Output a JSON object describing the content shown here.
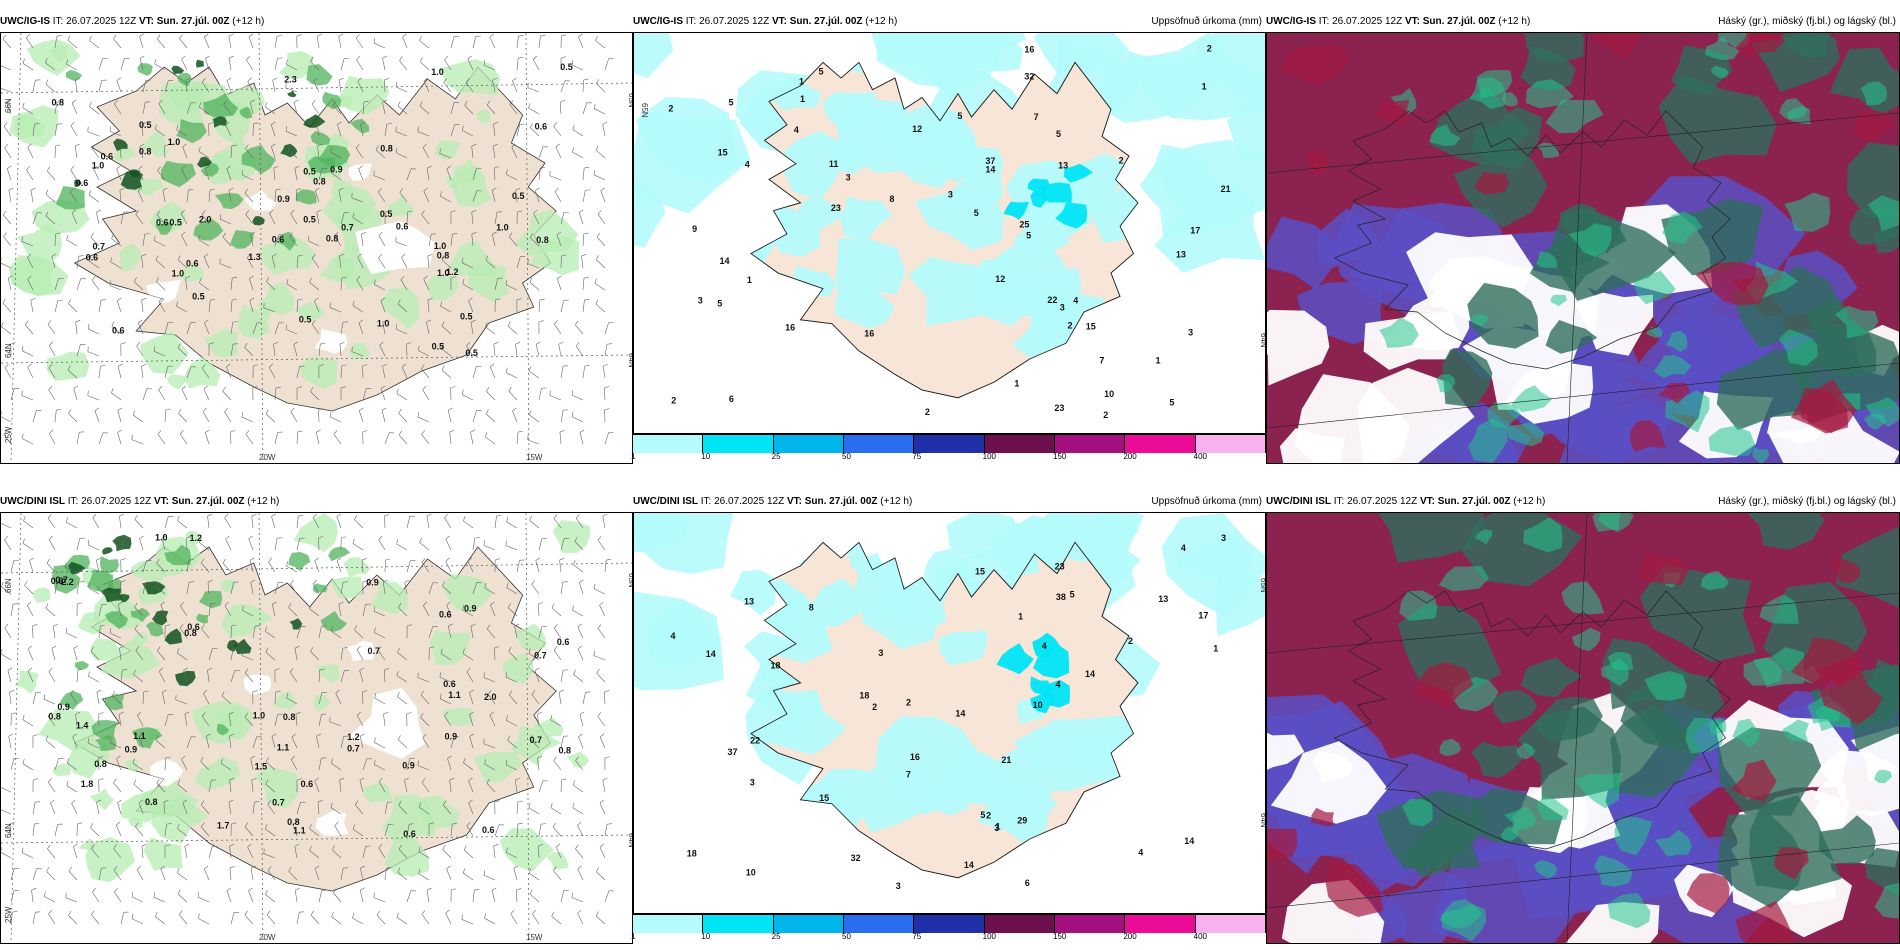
{
  "colorbar": {
    "labels": [
      "1",
      "10",
      "25",
      "50",
      "75",
      "100",
      "150",
      "200",
      "400"
    ],
    "colors": [
      "#b4fbfb",
      "#00e5f5",
      "#00b4ec",
      "#2a6ef0",
      "#1e2fa8",
      "#6e0f4e",
      "#a4107f",
      "#ea0c97",
      "#f6b1ee"
    ]
  },
  "rows": [
    {
      "model": "UWC/IG-IS",
      "wind_panel": {
        "it": " IT: 26.07.2025 12Z ",
        "vt": "VT: Sun. 27.júl. 00Z",
        "lead": " (+12 h)",
        "lat_labels": [
          "66N",
          "64N",
          "25W"
        ],
        "lon_labels": [
          "20W",
          "15W"
        ],
        "right_labels": [
          "65N",
          "64N"
        ],
        "values": [
          "1.3",
          "2.0",
          "0.6",
          "0.8",
          "0.5",
          "1.0",
          "0.6",
          "0.8",
          "0.5",
          "1.0",
          "1.0",
          "0.8",
          "0.6",
          "0.7",
          "1.0",
          "0.5",
          "0.6",
          "0.6",
          "0.5",
          "0.6",
          "1.2",
          "0.6",
          "0.5",
          "1.0",
          "0.5",
          "0.8",
          "0.9",
          "1.0",
          "0.8",
          "0.6",
          "0.5",
          "0.9",
          "0.8",
          "2.3",
          "0.6",
          "1.0",
          "0.5",
          "0.5",
          "0.8",
          "1.0",
          "0.5",
          "0.7",
          "0.5",
          "0.5"
        ]
      },
      "precip_panel": {
        "it": " IT: 26.07.2025 12Z ",
        "vt": "VT: Sun. 27.júl. 00Z",
        "lead": " (+12 h)",
        "title": "Uppsöfnuð úrkoma (mm)",
        "left_labels": [
          "65N"
        ],
        "right_labels": [
          "64N"
        ],
        "values": [
          "1",
          "3",
          "2",
          "2",
          "1",
          "5",
          "3",
          "4",
          "5",
          "5",
          "6",
          "2",
          "5",
          "4",
          "7",
          "5",
          "12",
          "9",
          "15",
          "25",
          "21",
          "23",
          "23",
          "22",
          "32",
          "37",
          "13",
          "12",
          "16",
          "15",
          "14",
          "17",
          "16",
          "14",
          "16",
          "10",
          "11",
          "13",
          "3",
          "7",
          "2",
          "1",
          "5",
          "2",
          "3",
          "4",
          "3",
          "5",
          "8",
          "2",
          "1",
          "2",
          "1",
          "5",
          "1"
        ]
      },
      "cloud_panel": {
        "it": " IT: 26.07.2025 12Z ",
        "vt": "VT: Sun. 27.júl. 00Z",
        "lead": " (+12 h)",
        "title": "Háský (gr.), miðský (fj.bl.) og lágský (bl.)"
      }
    },
    {
      "model": "UWC/DINI ISL",
      "wind_panel": {
        "it": " IT: 26.07.2025 12Z ",
        "vt": "VT: Sun. 27.júl. 00Z",
        "lead": " (+12 h)",
        "lat_labels": [
          "66N",
          "64N",
          "25W"
        ],
        "lon_labels": [
          "20W",
          "15W"
        ],
        "right_labels": [
          "65N",
          "64N"
        ],
        "values": [
          "0.9",
          "0.8",
          "0.9",
          "0.7",
          "0.6",
          "0.8",
          "0.6",
          "0.8",
          "0.9",
          "0.8",
          "1.2",
          "2.2",
          "0.9",
          "0.8",
          "0.9",
          "1.0",
          "0.8",
          "1.1",
          "0.7",
          "1.0",
          "0.7",
          "1.1",
          "0.7",
          "1.1",
          "0.6",
          "1.5",
          "2.0",
          "1.8",
          "0.8",
          "0.6",
          "1.1",
          "1.2",
          "0.6",
          "0.6",
          "1.7",
          "0.7",
          "0.6",
          "0.6",
          "0.9",
          "1.4",
          "0.7"
        ]
      },
      "precip_panel": {
        "it": " IT: 26.07.2025 12Z ",
        "vt": "VT: Sun. 27.júl. 00Z",
        "lead": " (+12 h)",
        "title": "Uppsöfnuð úrkoma (mm)",
        "left_labels": [],
        "right_labels": [
          "65N",
          "64N"
        ],
        "values": [
          "3",
          "2",
          "3",
          "2",
          "4",
          "3",
          "5",
          "4",
          "3",
          "5",
          "6",
          "4",
          "2",
          "4",
          "14",
          "10",
          "13",
          "18",
          "23",
          "32",
          "37",
          "29",
          "22",
          "14",
          "18",
          "14",
          "38",
          "21",
          "16",
          "17",
          "14",
          "18",
          "10",
          "14",
          "15",
          "15",
          "13",
          "7",
          "8",
          "2",
          "1",
          "4",
          "1",
          "3",
          "1"
        ]
      },
      "cloud_panel": {
        "it": " IT: 26.07.2025 12Z ",
        "vt": "VT: Sun. 27.júl. 00Z",
        "lead": " (+12 h)",
        "title": "Háský (gr.), miðský (fj.bl.) og lágský (bl.)"
      }
    }
  ]
}
